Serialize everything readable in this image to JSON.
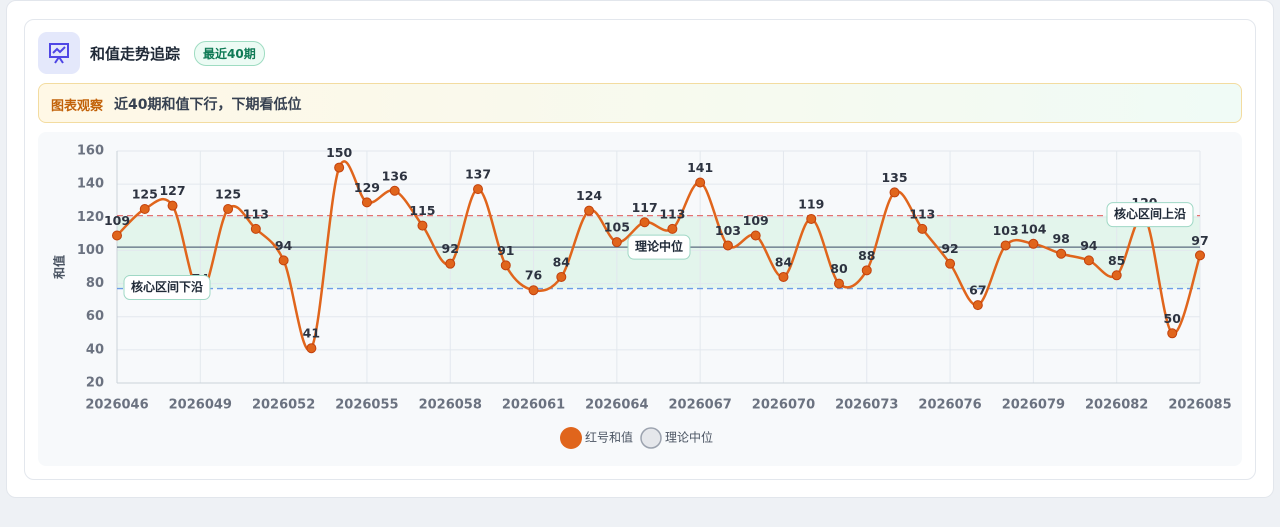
{
  "header": {
    "title": "和值走势追踪",
    "badge": "最近40期",
    "observation_label": "图表观察",
    "observation": "近40期和值下行，下期看低位"
  },
  "chart_data": {
    "type": "line",
    "y_label": "和值",
    "categories": [
      "2026046",
      null,
      null,
      "2026049",
      null,
      null,
      "2026052",
      null,
      null,
      "2026055",
      null,
      null,
      "2026058",
      null,
      null,
      "2026061",
      null,
      null,
      "2026064",
      null,
      null,
      "2026067",
      null,
      null,
      "2026070",
      null,
      null,
      "2026073",
      null,
      null,
      "2026076",
      null,
      null,
      "2026079",
      null,
      null,
      "2026082",
      null,
      null,
      "2026085"
    ],
    "series": [
      {
        "name": "红号和值",
        "color": "#e0651c",
        "values": [
          109,
          125,
          127,
          74,
          125,
          113,
          94,
          41,
          150,
          129,
          136,
          115,
          92,
          137,
          91,
          76,
          84,
          124,
          105,
          117,
          113,
          141,
          103,
          109,
          84,
          119,
          80,
          88,
          135,
          113,
          92,
          67,
          103,
          104,
          98,
          94,
          85,
          120,
          50,
          97
        ]
      }
    ],
    "median": {
      "name": "理论中位",
      "value": 102,
      "color": "#5b6b7e"
    },
    "band": {
      "lower": 77,
      "upper": 121,
      "lower_label": "核心区间下沿",
      "upper_label": "核心区间上沿",
      "lower_color": "#6c9be6",
      "upper_color": "#e57373",
      "fill": "#e3f5ec"
    },
    "ylim": [
      20,
      160
    ],
    "yticks": [
      20,
      40,
      60,
      80,
      100,
      120,
      140,
      160
    ],
    "grid": true
  }
}
